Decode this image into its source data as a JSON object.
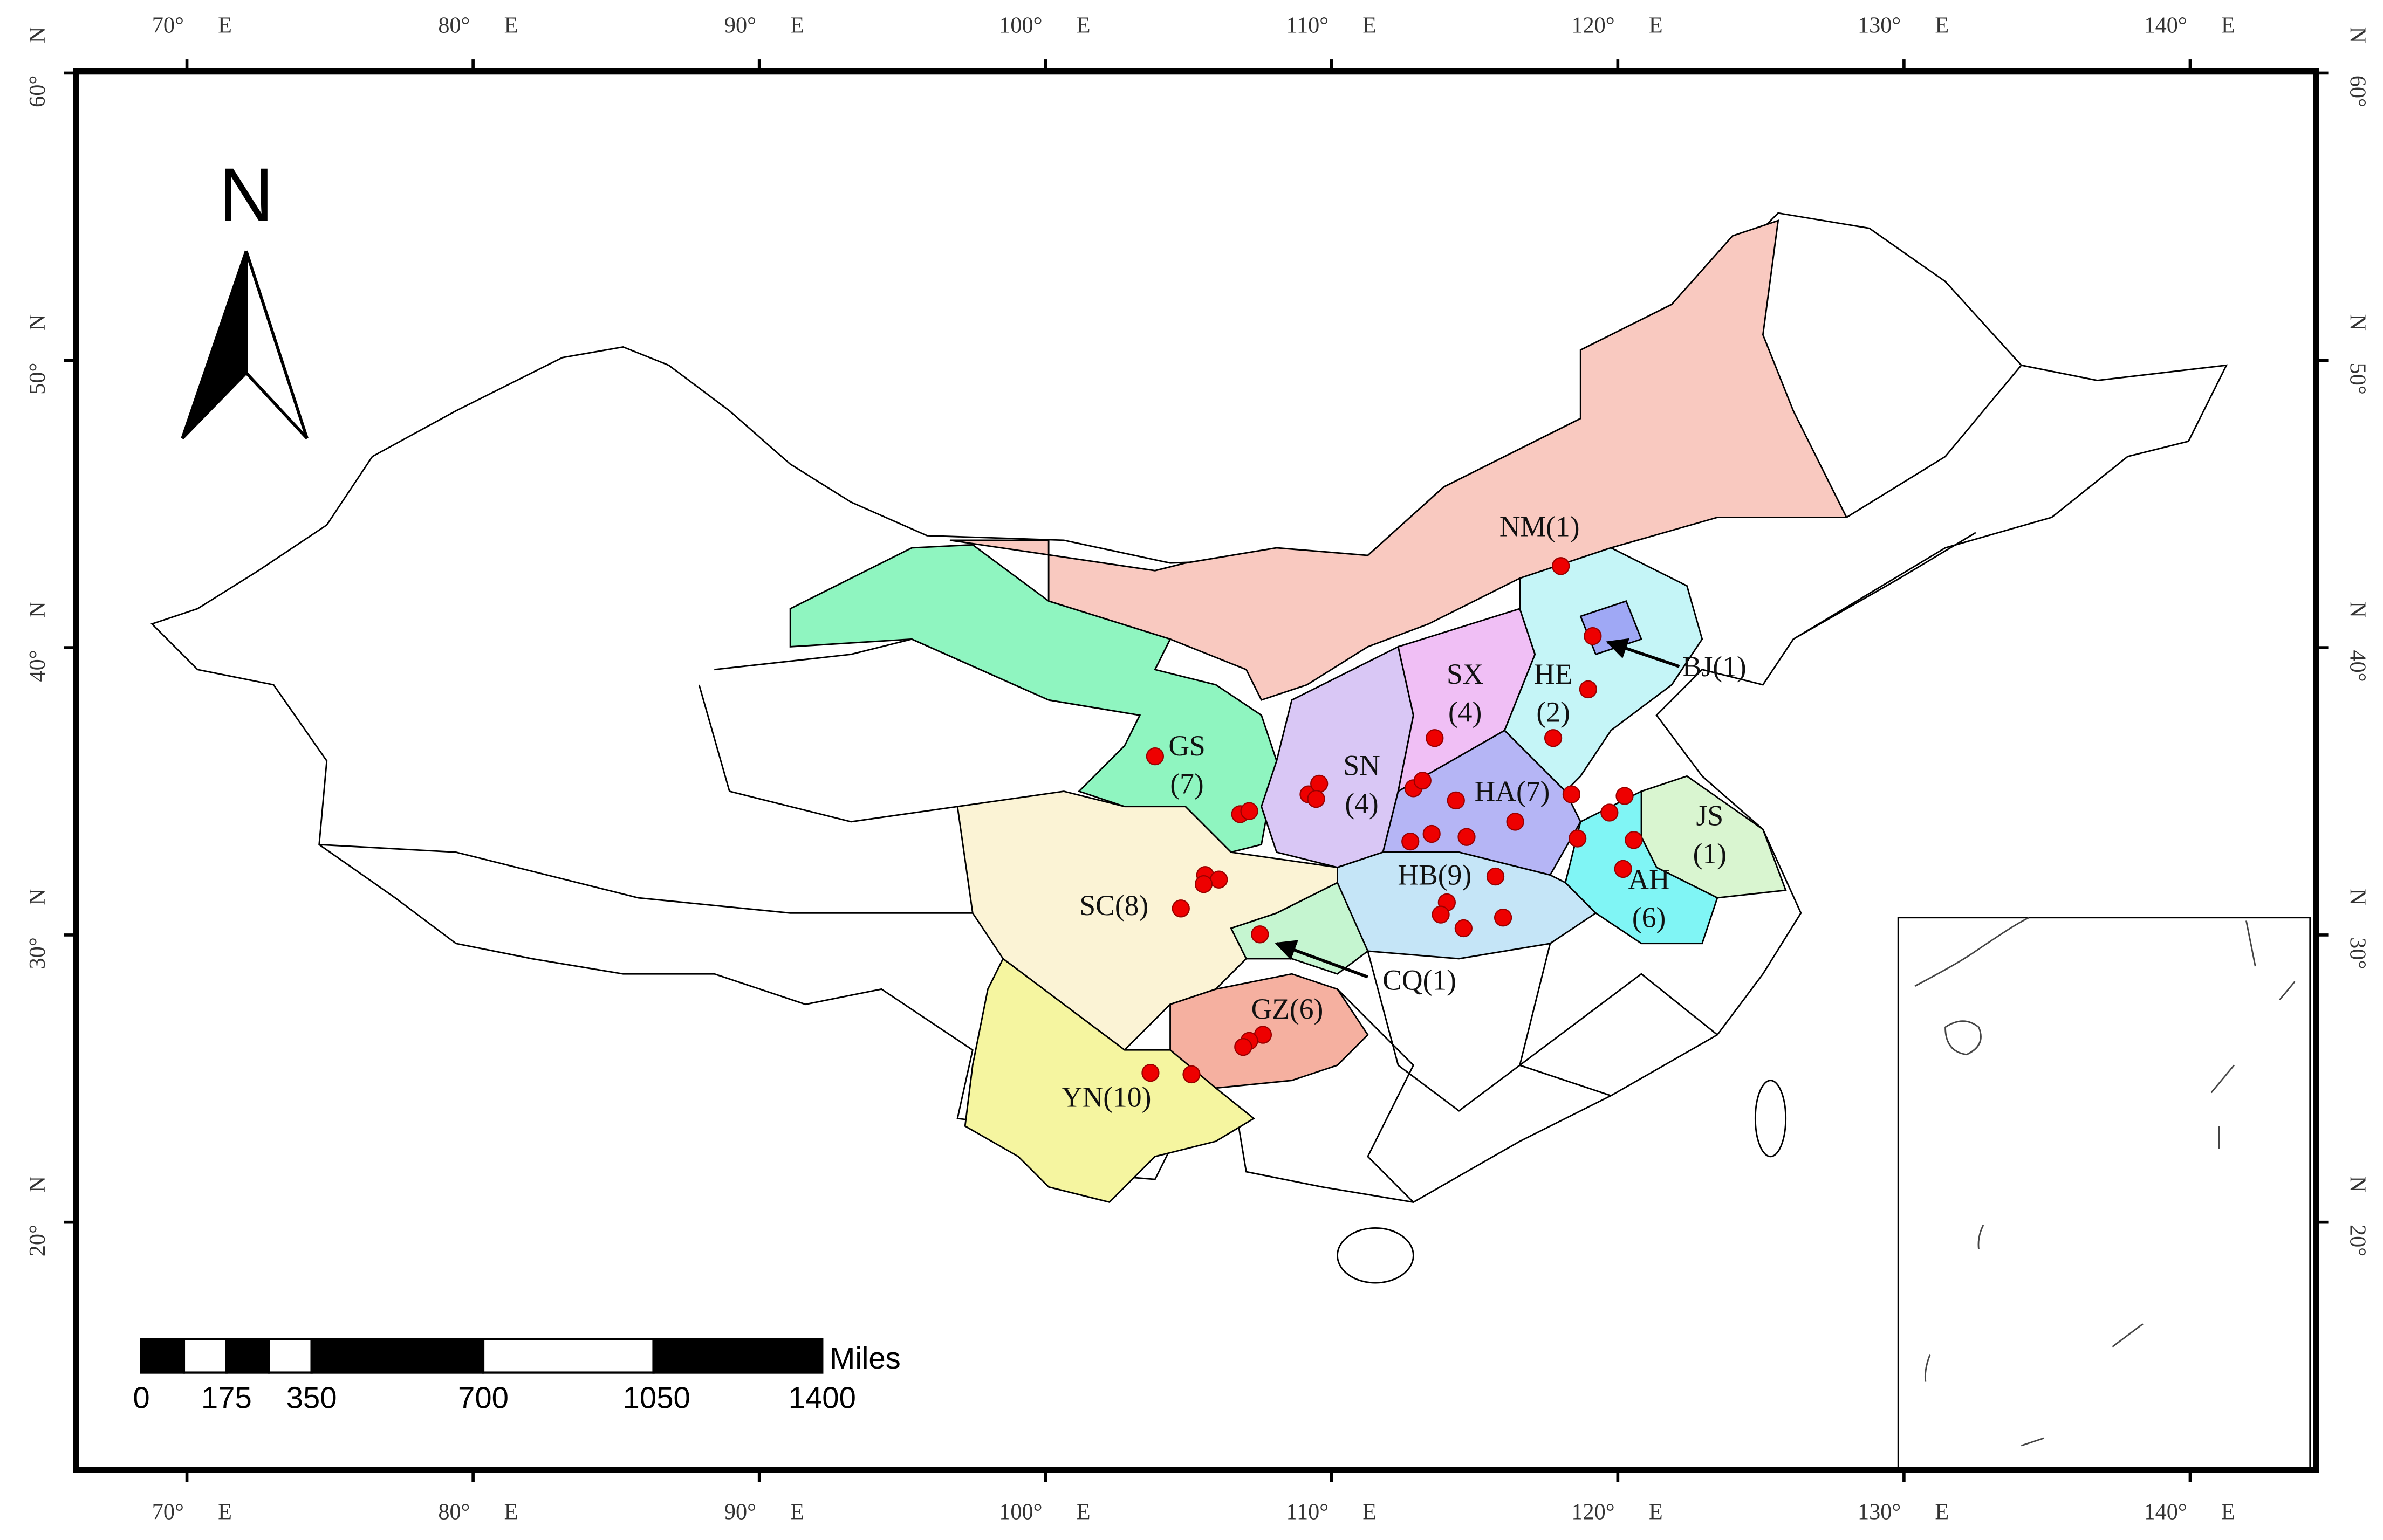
{
  "graticule": {
    "longitudes": [
      "70°",
      "80°",
      "90°",
      "100°",
      "110°",
      "120°",
      "130°",
      "140°"
    ],
    "east": "E",
    "latitudes": [
      "60°",
      "50°",
      "40°",
      "30°",
      "20°"
    ],
    "north": "N"
  },
  "north_arrow": "N",
  "scale_bar": {
    "unit": "Miles",
    "labels": [
      "0",
      "175",
      "350",
      "700",
      "1050",
      "1400"
    ]
  },
  "provinces": [
    {
      "lines": [
        "NM(1)"
      ]
    },
    {
      "lines": [
        "SX",
        "(4)"
      ]
    },
    {
      "lines": [
        "HE",
        "(2)"
      ]
    },
    {
      "lines": [
        "BJ(1)"
      ]
    },
    {
      "lines": [
        "GS",
        "(7)"
      ]
    },
    {
      "lines": [
        "SN",
        "(4)"
      ]
    },
    {
      "lines": [
        "HA(7)"
      ]
    },
    {
      "lines": [
        "JS",
        "(1)"
      ]
    },
    {
      "lines": [
        "HB(9)"
      ]
    },
    {
      "lines": [
        "AH",
        "(6)"
      ]
    },
    {
      "lines": [
        "SC(8)"
      ]
    },
    {
      "lines": [
        "CQ(1)"
      ]
    },
    {
      "lines": [
        "GZ(6)"
      ]
    },
    {
      "lines": [
        "YN(10)"
      ]
    }
  ]
}
